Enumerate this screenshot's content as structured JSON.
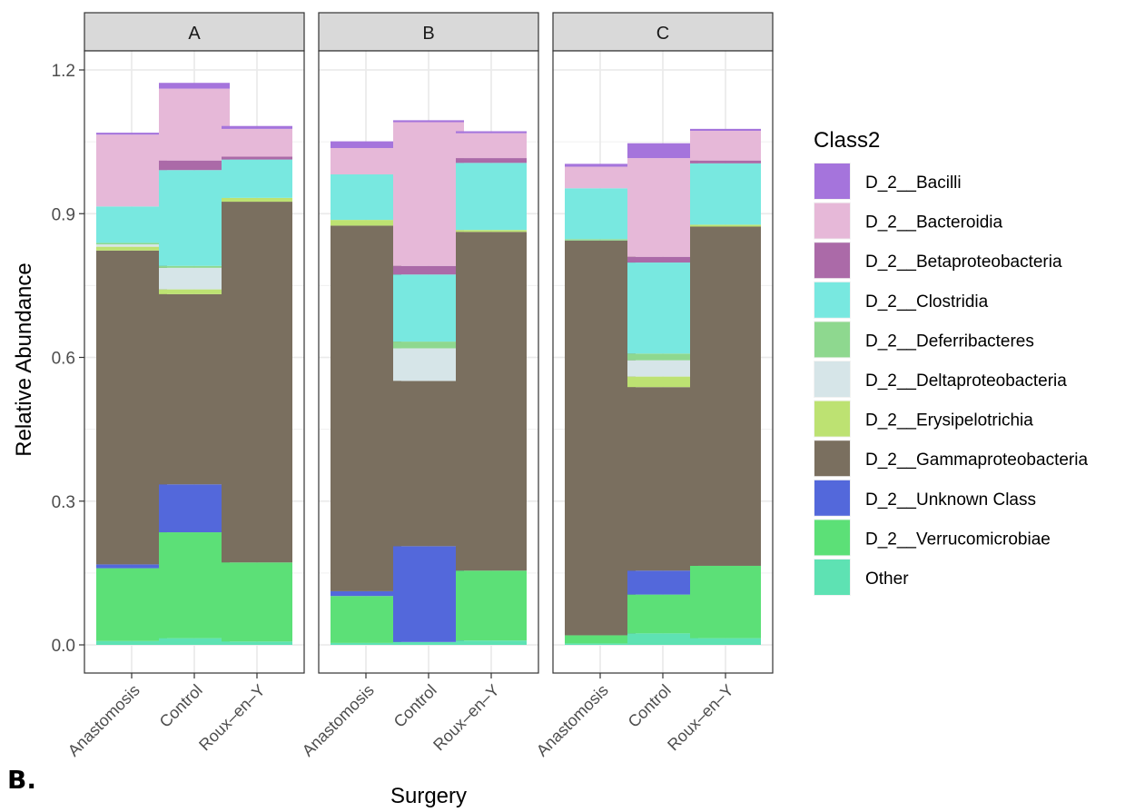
{
  "panel_label": "B.",
  "chart_data": {
    "type": "bar",
    "stacked": true,
    "facets": [
      "A",
      "B",
      "C"
    ],
    "categories": [
      "Anastomosis",
      "Control",
      "Roux–en–Y"
    ],
    "xlabel": "Surgery",
    "ylabel": "Relative Abundance",
    "ylim": [
      0,
      1.25
    ],
    "yticks": [
      "0.0",
      "0.3",
      "0.6",
      "0.9",
      "1.2"
    ],
    "grid": true,
    "legend_title": "Class2",
    "legend_position": "right",
    "series": [
      {
        "name": "Other",
        "color": "#5ee2b3",
        "values": [
          [
            0.008,
            0.014,
            0.007
          ],
          [
            0.004,
            0.006,
            0.009
          ],
          [
            0.003,
            0.024,
            0.014
          ]
        ]
      },
      {
        "name": "D_2__Verrucomicrobiae",
        "color": "#5ce077",
        "values": [
          [
            0.152,
            0.221,
            0.165
          ],
          [
            0.098,
            0.0,
            0.146
          ],
          [
            0.017,
            0.081,
            0.151
          ]
        ]
      },
      {
        "name": "D_2__Unknown Class",
        "color": "#5368db",
        "values": [
          [
            0.008,
            0.1,
            0.0
          ],
          [
            0.01,
            0.2,
            0.0
          ],
          [
            0.0,
            0.05,
            0.0
          ]
        ]
      },
      {
        "name": "D_2__Gammaproteobacteria",
        "color": "#7a6f5f",
        "values": [
          [
            0.655,
            0.397,
            0.753
          ],
          [
            0.763,
            0.345,
            0.707
          ],
          [
            0.824,
            0.383,
            0.708
          ]
        ]
      },
      {
        "name": "D_2__Erysipelotrichia",
        "color": "#bde272",
        "values": [
          [
            0.008,
            0.01,
            0.008
          ],
          [
            0.012,
            0.0,
            0.004
          ],
          [
            0.0,
            0.022,
            0.004
          ]
        ]
      },
      {
        "name": "D_2__Deltaproteobacteria",
        "color": "#d6e5e8",
        "values": [
          [
            0.005,
            0.045,
            0.0
          ],
          [
            0.0,
            0.068,
            0.0
          ],
          [
            0.0,
            0.034,
            0.0
          ]
        ]
      },
      {
        "name": "D_2__Deferribacteres",
        "color": "#8ed88f",
        "values": [
          [
            0.003,
            0.004,
            0.0
          ],
          [
            0.0,
            0.014,
            0.0
          ],
          [
            0.003,
            0.014,
            0.0
          ]
        ]
      },
      {
        "name": "D_2__Clostridia",
        "color": "#78e8e0",
        "values": [
          [
            0.076,
            0.2,
            0.08
          ],
          [
            0.095,
            0.14,
            0.14
          ],
          [
            0.106,
            0.19,
            0.128
          ]
        ]
      },
      {
        "name": "D_2__Betaproteobacteria",
        "color": "#ab6aa8",
        "values": [
          [
            0.0,
            0.02,
            0.006
          ],
          [
            0.0,
            0.018,
            0.01
          ],
          [
            0.0,
            0.012,
            0.006
          ]
        ]
      },
      {
        "name": "D_2__Bacteroidia",
        "color": "#e6b8d8",
        "values": [
          [
            0.15,
            0.15,
            0.058
          ],
          [
            0.055,
            0.3,
            0.052
          ],
          [
            0.045,
            0.206,
            0.062
          ]
        ]
      },
      {
        "name": "D_2__Bacilli",
        "color": "#a574dc",
        "values": [
          [
            0.004,
            0.012,
            0.006
          ],
          [
            0.014,
            0.004,
            0.004
          ],
          [
            0.006,
            0.031,
            0.004
          ]
        ]
      }
    ],
    "legend_order": [
      "D_2__Bacilli",
      "D_2__Bacteroidia",
      "D_2__Betaproteobacteria",
      "D_2__Clostridia",
      "D_2__Deferribacteres",
      "D_2__Deltaproteobacteria",
      "D_2__Erysipelotrichia",
      "D_2__Gammaproteobacteria",
      "D_2__Unknown Class",
      "D_2__Verrucomicrobiae",
      "Other"
    ]
  }
}
